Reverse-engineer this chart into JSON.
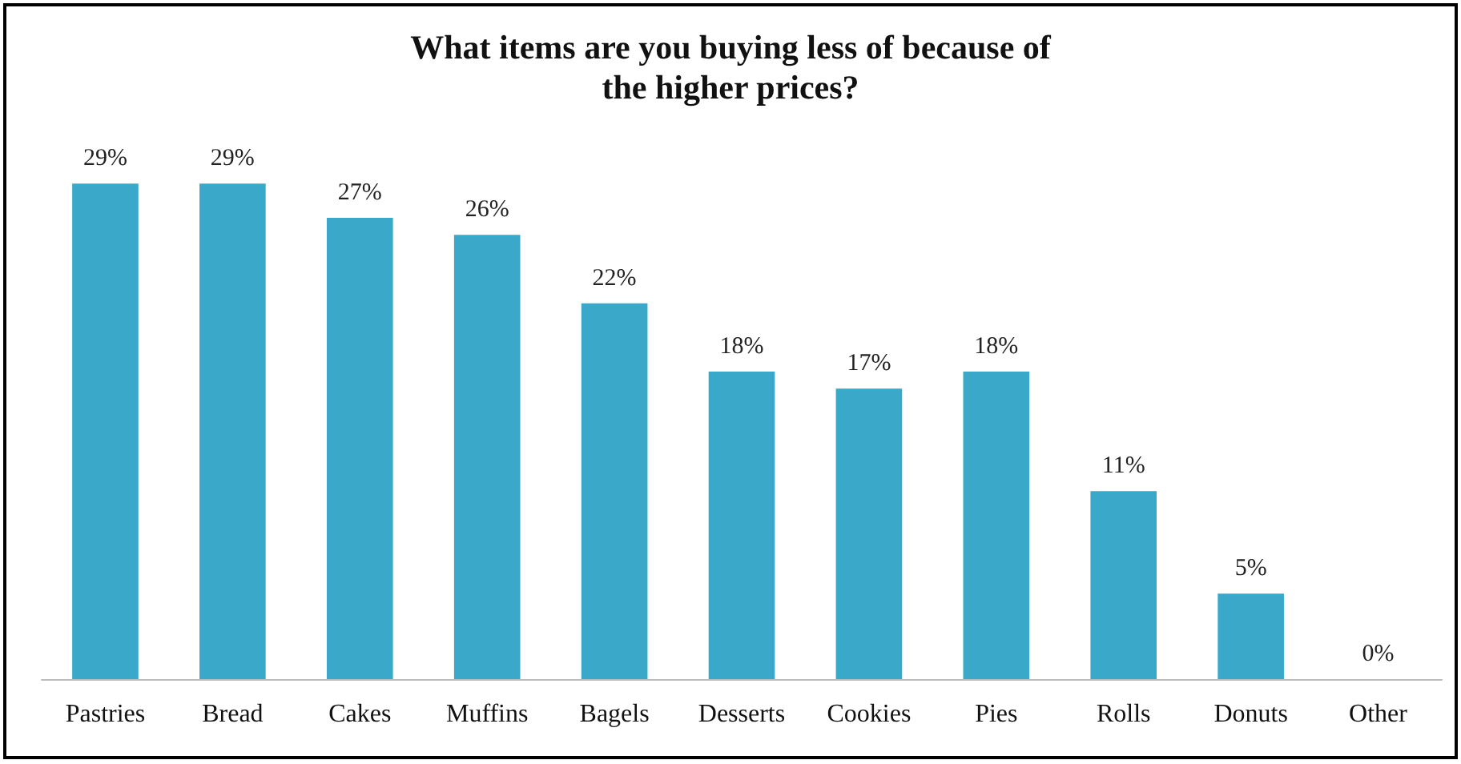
{
  "chart_data": {
    "type": "bar",
    "title": "What items are you buying less of because of\nthe higher prices?",
    "categories": [
      "Pastries",
      "Bread",
      "Cakes",
      "Muffins",
      "Bagels",
      "Desserts",
      "Cookies",
      "Pies",
      "Rolls",
      "Donuts",
      "Other"
    ],
    "values": [
      29,
      29,
      27,
      26,
      22,
      18,
      17,
      18,
      11,
      5,
      0
    ],
    "value_labels": [
      "29%",
      "29%",
      "27%",
      "26%",
      "22%",
      "18%",
      "17%",
      "18%",
      "11%",
      "5%",
      "0%"
    ],
    "color": "#3aa8c8"
  }
}
